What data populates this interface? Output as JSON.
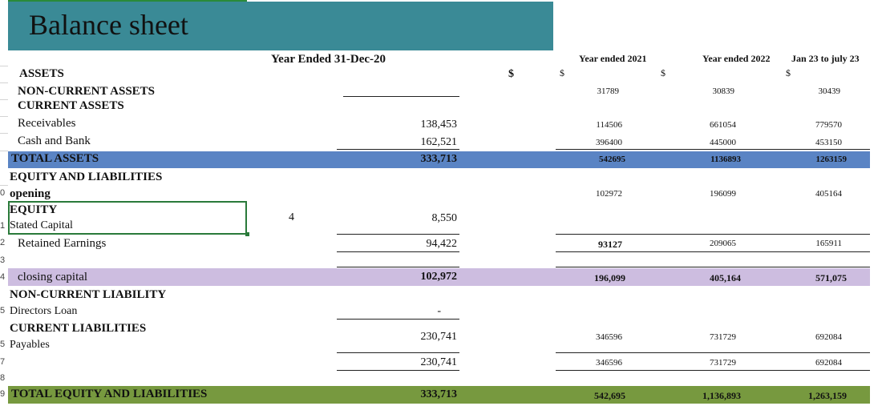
{
  "title": "Balance sheet",
  "headers": {
    "year_2020": "Year Ended 31-Dec-20",
    "year_2021": "Year ended 2021",
    "year_2022": "Year ended 2022",
    "jan_july_23": "Jan 23 to july 23",
    "dollar_bold": "$",
    "dollar_2021": "$",
    "dollar_2022": "$",
    "dollar_23": "$"
  },
  "row_numbers": [
    "",
    "",
    "",
    "",
    "",
    "",
    "",
    "",
    "0",
    "1",
    "2",
    "3",
    "4",
    "5",
    "5",
    "7",
    "8",
    "9"
  ],
  "rows": {
    "assets": "ASSETS",
    "non_current_assets": {
      "label": "NON-CURRENT ASSETS",
      "y2021": "31789",
      "y2022": "30839",
      "y23": "30439"
    },
    "current_assets": "CURRENT ASSETS",
    "receivables": {
      "label": "Receivables",
      "y2020": "138,453",
      "y2021": "114506",
      "y2022": "661054",
      "y23": "779570"
    },
    "cash_and_bank": {
      "label": "Cash and Bank",
      "y2020": "162,521",
      "y2021": "396400",
      "y2022": "445000",
      "y23": "453150"
    },
    "total_assets": {
      "label": "TOTAL ASSETS",
      "y2020": "333,713",
      "y2021": "542695",
      "y2022": "1136893",
      "y23": "1263159"
    },
    "equity_and_liabilities": "EQUITY AND LIABILITIES",
    "opening": {
      "label": "opening",
      "y2021": "102972",
      "y2022": "196099",
      "y23": "405164"
    },
    "equity": "EQUITY",
    "stated_capital": {
      "label": "Stated Capital",
      "note": "4",
      "y2020": "8,550"
    },
    "retained_earnings": {
      "label": "Retained Earnings",
      "y2020": "94,422",
      "y2021": "93127",
      "y2022": "209065",
      "y23": "165911"
    },
    "closing_capital": {
      "label": "closing capital",
      "y2020": "102,972",
      "y2021": "196,099",
      "y2022": "405,164",
      "y23": "571,075"
    },
    "non_current_liability": "NON-CURRENT LIABILITY",
    "directors_loan": {
      "label": "Directors Loan",
      "y2020": "-"
    },
    "current_liabilities": "CURRENT LIABILITIES",
    "payables": {
      "label": "Payables",
      "y2020": "230,741",
      "y2021": "346596",
      "y2022": "731729",
      "y23": "692084"
    },
    "subtotal": {
      "y2020": "230,741",
      "y2021": "346596",
      "y2022": "731729",
      "y23": "692084"
    },
    "total_equity_liabilities": {
      "label": "TOTAL EQUITY AND LIABILITIES",
      "y2020": "333,713",
      "y2021": "542,695",
      "y2022": "1,136,893",
      "y23": "1,263,159"
    }
  },
  "colors": {
    "title_bg": "#3a8a96",
    "total_assets_band": "#5a84c4",
    "closing_capital_band": "#cdbde0",
    "total_el_band": "#77993f",
    "selection": "#2a7a3a"
  }
}
